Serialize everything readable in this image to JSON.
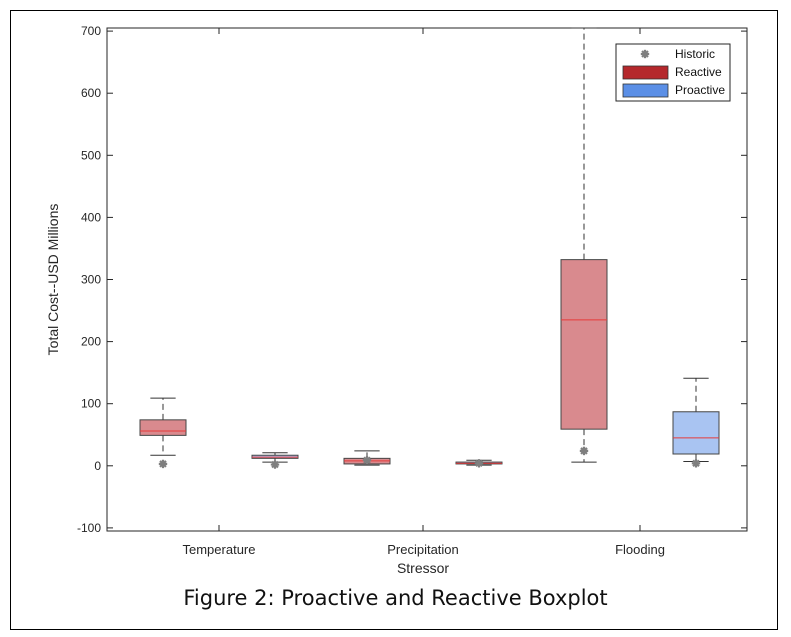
{
  "caption": "Figure 2: Proactive and Reactive Boxplot",
  "chart_data": {
    "type": "boxplot",
    "title": "",
    "xlabel": "Stressor",
    "ylabel": "Total Cost--USD Millions",
    "ylim": [
      -105,
      705
    ],
    "yticks": [
      -100,
      0,
      100,
      200,
      300,
      400,
      500,
      600,
      700
    ],
    "categories": [
      "Temperature",
      "Precipitation",
      "Flooding"
    ],
    "legend": {
      "placement": "top-right",
      "entries": [
        {
          "label": "Historic",
          "kind": "marker",
          "color": "#7f7f7f"
        },
        {
          "label": "Reactive",
          "kind": "patch",
          "color": "#b5282c"
        },
        {
          "label": "Proactive",
          "kind": "patch",
          "color": "#5b8fe6"
        }
      ]
    },
    "series": [
      {
        "name": "Reactive",
        "face": "#d98a8e",
        "median_color": "#e63a3a",
        "boxes": [
          {
            "category": "Temperature",
            "whisker_low": 17,
            "q1": 49,
            "median": 56,
            "q3": 74,
            "whisker_high": 109
          },
          {
            "category": "Precipitation",
            "whisker_low": 1,
            "q1": 3,
            "median": 8,
            "q3": 12,
            "whisker_high": 24
          },
          {
            "category": "Flooding",
            "whisker_low": 6,
            "q1": 59,
            "median": 235,
            "q3": 332,
            "whisker_high": 705
          }
        ]
      },
      {
        "name": "Proactive",
        "face": "#a9c4f2",
        "median_color": "#e63a3a",
        "boxes": [
          {
            "category": "Temperature",
            "whisker_low": 6,
            "q1": 12,
            "median": 14,
            "q3": 17,
            "whisker_high": 21
          },
          {
            "category": "Precipitation",
            "whisker_low": 1,
            "q1": 3,
            "median": 4,
            "q3": 6,
            "whisker_high": 9
          },
          {
            "category": "Flooding",
            "whisker_low": 7,
            "q1": 19,
            "median": 45,
            "q3": 87,
            "whisker_high": 141
          }
        ]
      }
    ],
    "historic": [
      {
        "category": "Temperature",
        "series": "Reactive",
        "value": 3
      },
      {
        "category": "Temperature",
        "series": "Proactive",
        "value": 2
      },
      {
        "category": "Precipitation",
        "series": "Reactive",
        "value": 9
      },
      {
        "category": "Precipitation",
        "series": "Proactive",
        "value": 4
      },
      {
        "category": "Flooding",
        "series": "Reactive",
        "value": 24
      },
      {
        "category": "Flooding",
        "series": "Proactive",
        "value": 4
      }
    ]
  }
}
